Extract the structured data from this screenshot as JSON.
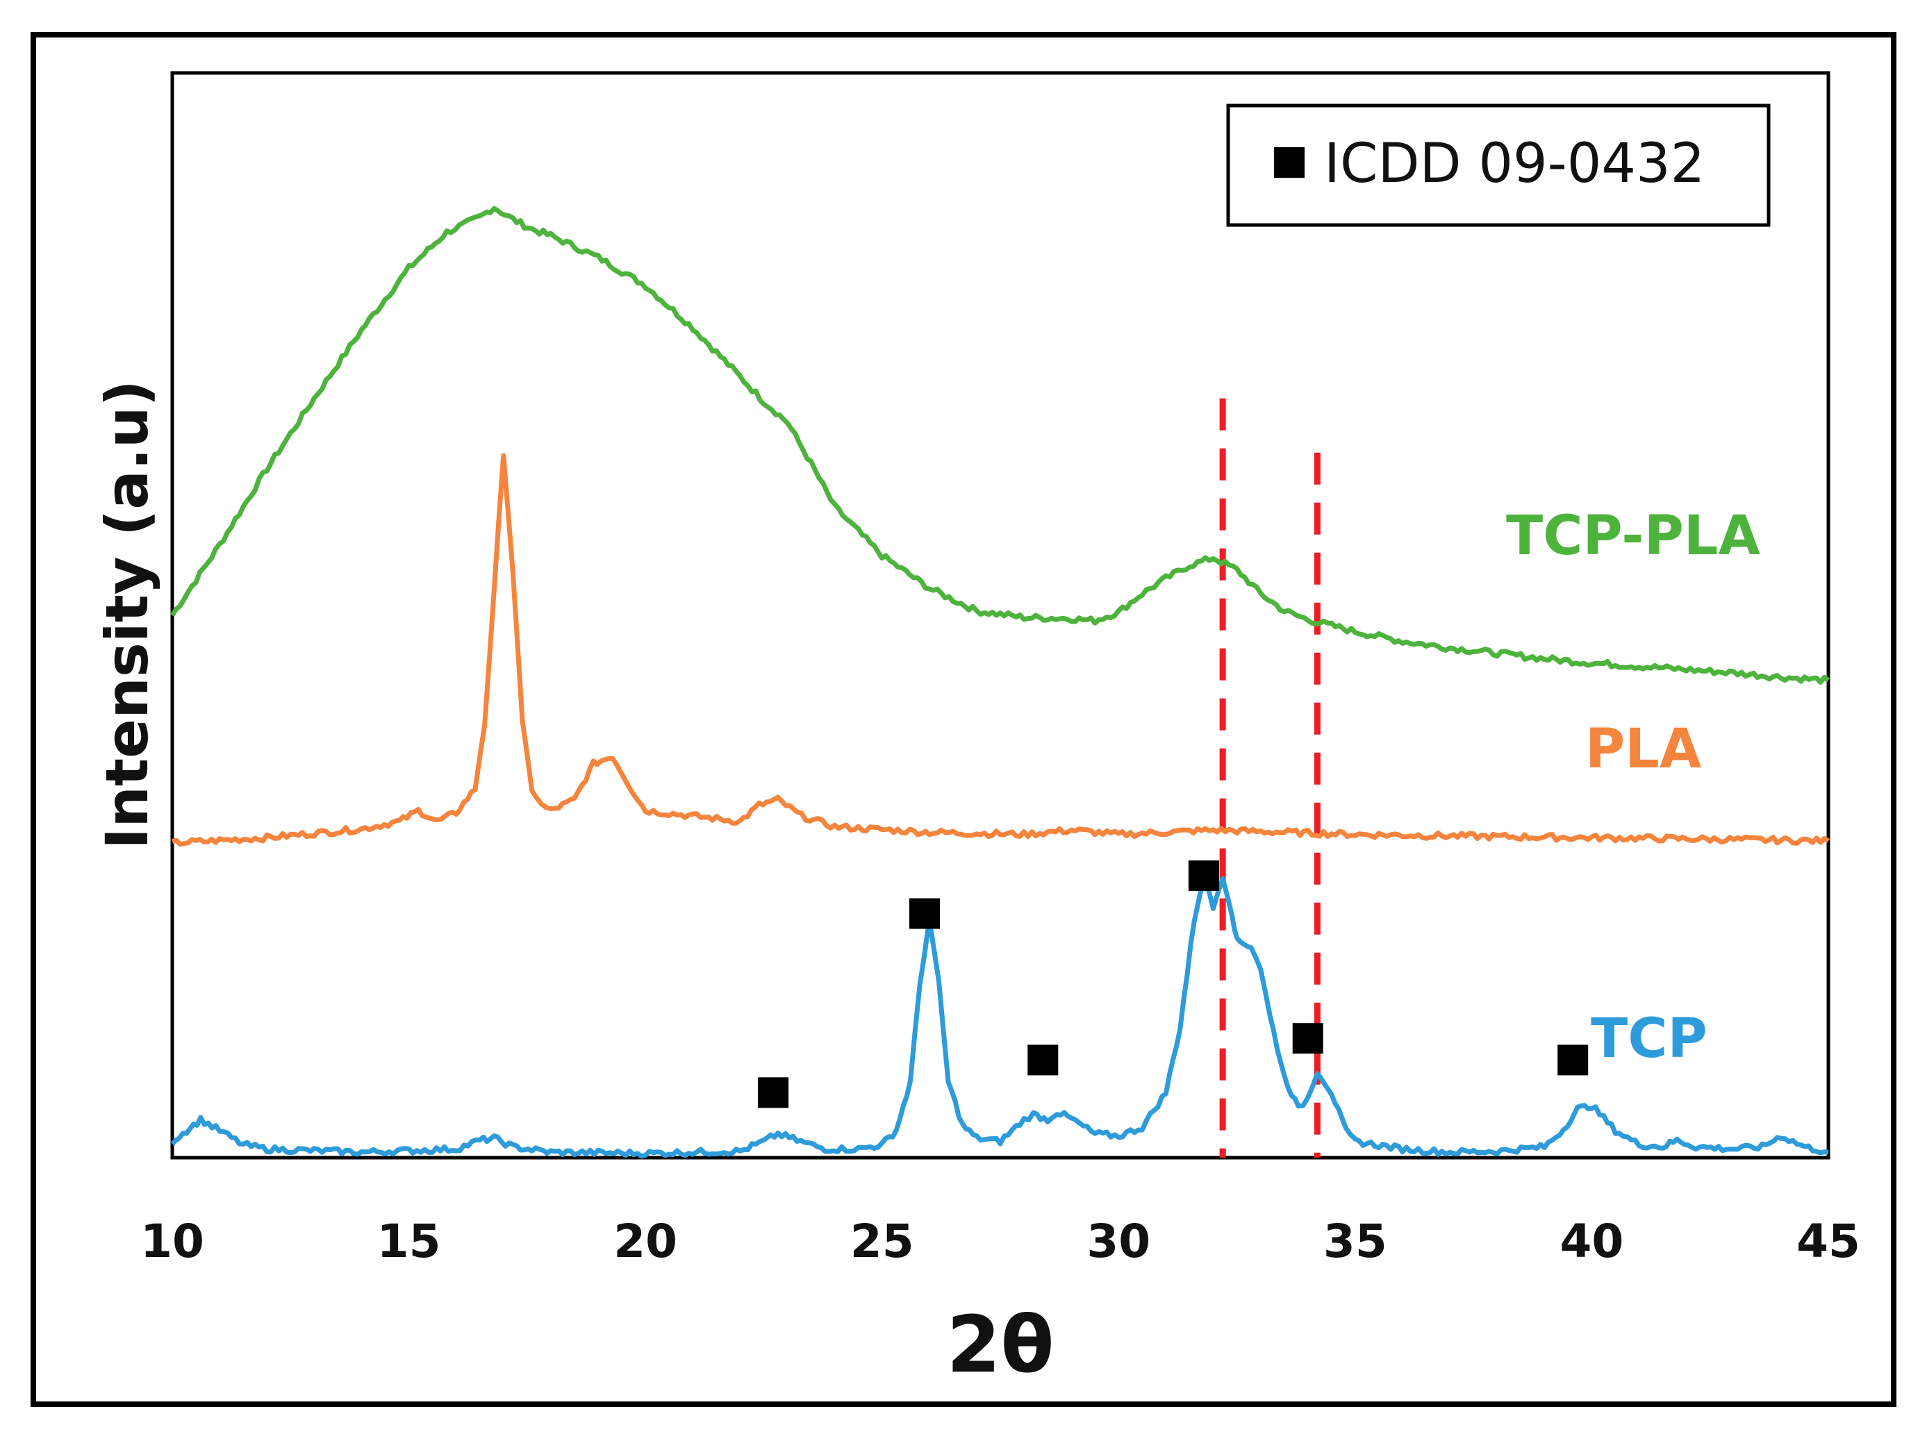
{
  "chart_data": {
    "type": "line",
    "title": "",
    "xlabel": "2θ",
    "ylabel": "Intensity (a.u)",
    "xlim": [
      10,
      45
    ],
    "ylim": [
      0,
      100
    ],
    "x_ticks": [
      "10",
      "15",
      "20",
      "25",
      "30",
      "35",
      "40",
      "45"
    ],
    "x_tick_values": [
      10,
      15,
      20,
      25,
      30,
      35,
      40,
      45
    ],
    "legend": {
      "position": "top-right",
      "marker": "square",
      "marker_color": "#000000",
      "label": "ICDD 09-0432"
    },
    "series": [
      {
        "name": "TCP-PLA",
        "color": "#4db33d",
        "x": [
          10,
          11,
          12,
          13,
          14,
          15,
          15.8,
          16.5,
          16.8,
          17.2,
          17.6,
          18,
          19,
          20,
          21,
          22,
          22.5,
          23,
          23.5,
          24,
          25,
          26,
          27,
          28,
          29,
          29.5,
          30,
          30.5,
          31,
          31.5,
          32,
          32.5,
          33,
          33.5,
          34,
          35,
          36,
          37,
          38,
          39,
          40,
          41,
          42,
          43,
          44,
          45
        ],
        "values": [
          50,
          56.5,
          63.5,
          70,
          76.3,
          82,
          85.3,
          86.7,
          87.6,
          86.5,
          85.6,
          85,
          83,
          80.4,
          76.5,
          72,
          69.7,
          67.8,
          64,
          60,
          55.5,
          52.5,
          50.4,
          49.8,
          49.7,
          49.5,
          50.3,
          52,
          53.4,
          54.6,
          55.3,
          54.2,
          52,
          50.4,
          49.6,
          48.5,
          47.6,
          47,
          46.5,
          46,
          45.6,
          45.3,
          45,
          44.7,
          44.3,
          44
        ]
      },
      {
        "name": "PLA",
        "color": "#f5843d",
        "x": [
          10,
          12,
          14,
          14.8,
          15.2,
          15.6,
          16,
          16.4,
          16.6,
          16.8,
          17,
          17.2,
          17.4,
          17.6,
          17.8,
          18,
          18.5,
          18.9,
          19.3,
          19.7,
          20,
          21,
          22,
          22.4,
          22.8,
          23.3,
          24,
          26,
          28,
          29,
          30,
          32,
          35,
          38,
          40,
          42,
          45
        ],
        "values": [
          29,
          29.5,
          30.3,
          31,
          32,
          31,
          31.8,
          34,
          40,
          52,
          65,
          54,
          40,
          34,
          32.5,
          32,
          33,
          36.3,
          37,
          34,
          32,
          31.5,
          31,
          32.5,
          33,
          31.5,
          30.5,
          30,
          29.8,
          30.2,
          29.8,
          30.2,
          29.8,
          29.6,
          29.5,
          29.4,
          29.2
        ]
      },
      {
        "name": "TCP",
        "color": "#2e9bda",
        "x": [
          10,
          10.3,
          10.6,
          11,
          11.5,
          12,
          14,
          16,
          16.5,
          16.8,
          17.2,
          18,
          20,
          22,
          22.5,
          22.8,
          23.2,
          23.8,
          24.5,
          25,
          25.3,
          25.6,
          25.8,
          26,
          26.2,
          26.4,
          26.7,
          27,
          27.5,
          28,
          28.2,
          28.5,
          28.7,
          29,
          29.5,
          30,
          30.5,
          31,
          31.3,
          31.6,
          31.8,
          32,
          32.2,
          32.4,
          32.5,
          32.8,
          33,
          33.2,
          33.5,
          33.8,
          34,
          34.2,
          34.5,
          34.8,
          35,
          36,
          37,
          38,
          39,
          39.4,
          39.7,
          40,
          40.5,
          41,
          41.5,
          41.8,
          42.2,
          43,
          43.6,
          44,
          44.5,
          45
        ],
        "values": [
          1.5,
          2.5,
          3.5,
          2.5,
          1.2,
          0.8,
          0.5,
          0.8,
          1.6,
          1.8,
          1.0,
          0.5,
          0.4,
          0.6,
          1.5,
          2.2,
          1.6,
          0.8,
          0.8,
          1.2,
          2.5,
          7,
          16,
          22,
          16,
          7,
          3,
          1.8,
          1.5,
          3.5,
          4,
          3.5,
          4.2,
          3.6,
          2.2,
          2,
          2.8,
          6,
          12,
          22,
          26,
          23,
          26,
          22.5,
          20,
          19.5,
          17.5,
          13,
          7.5,
          4.5,
          5.5,
          8,
          6,
          2.5,
          1.5,
          0.8,
          0.5,
          0.6,
          1.0,
          2.6,
          4.5,
          4.8,
          2.5,
          1.2,
          1.0,
          1.6,
          1.0,
          0.8,
          1.0,
          2.0,
          1.0,
          0.5
        ]
      }
    ],
    "series_labels": [
      {
        "text": "TCP-PLA",
        "color": "#4db33d"
      },
      {
        "text": "PLA",
        "color": "#f5843d"
      },
      {
        "text": "TCP",
        "color": "#2e9bda"
      }
    ],
    "reference_lines": [
      {
        "x": 32.2,
        "y_top": 70,
        "color": "#ee1c25",
        "style": "dashed"
      },
      {
        "x": 34.2,
        "y_top": 65,
        "color": "#ee1c25",
        "style": "dashed"
      }
    ],
    "peak_markers": [
      {
        "x": 22.7,
        "y": 6
      },
      {
        "x": 25.9,
        "y": 22.5
      },
      {
        "x": 28.4,
        "y": 9
      },
      {
        "x": 31.8,
        "y": 26
      },
      {
        "x": 34.0,
        "y": 11
      },
      {
        "x": 39.6,
        "y": 9
      }
    ]
  }
}
